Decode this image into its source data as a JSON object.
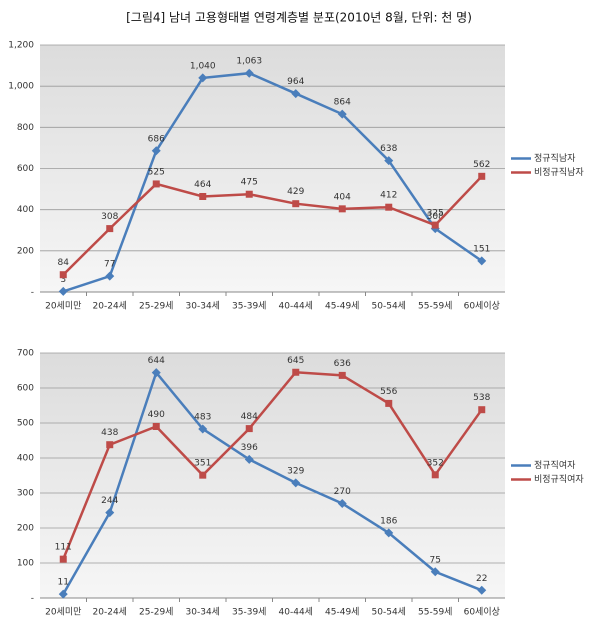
{
  "title": "[그림4] 남녀 고용형태별 연령계층별 분포(2010년 8월, 단위: 천 명)",
  "chart_data": [
    {
      "type": "line",
      "categories": [
        "20세미만",
        "20-24세",
        "25-29세",
        "30-34세",
        "35-39세",
        "40-44세",
        "45-49세",
        "50-54세",
        "55-59세",
        "60세이상"
      ],
      "ylim": [
        0,
        1200
      ],
      "yticks": [
        {
          "value": 0,
          "label": "-"
        },
        200,
        400,
        600,
        800,
        {
          "value": 1000,
          "label": "1,000"
        },
        {
          "value": 1200,
          "label": "1,200"
        }
      ],
      "grid": true,
      "legend": "right",
      "series": [
        {
          "name": "정규직남자",
          "color": "#4a7ebb",
          "marker": "diamond",
          "values": [
            3,
            77,
            686,
            1040,
            1063,
            964,
            864,
            638,
            308,
            151
          ],
          "value_labels": [
            "3",
            "77",
            "686",
            "1,040",
            "1,063",
            "964",
            "864",
            "638",
            "308",
            "151"
          ]
        },
        {
          "name": "비정규직남자",
          "color": "#be4b48",
          "marker": "square",
          "values": [
            84,
            308,
            525,
            464,
            475,
            429,
            404,
            412,
            325,
            562
          ]
        }
      ]
    },
    {
      "type": "line",
      "categories": [
        "20세미만",
        "20-24세",
        "25-29세",
        "30-34세",
        "35-39세",
        "40-44세",
        "45-49세",
        "50-54세",
        "55-59세",
        "60세이상"
      ],
      "ylim": [
        0,
        700
      ],
      "yticks": [
        {
          "value": 0,
          "label": "-"
        },
        100,
        200,
        300,
        400,
        500,
        600,
        700
      ],
      "grid": true,
      "legend": "right",
      "series": [
        {
          "name": "정규직여자",
          "color": "#4a7ebb",
          "marker": "diamond",
          "values": [
            11,
            244,
            644,
            483,
            396,
            329,
            270,
            186,
            75,
            22
          ]
        },
        {
          "name": "비정규직여자",
          "color": "#be4b48",
          "marker": "square",
          "values": [
            111,
            438,
            490,
            351,
            484,
            645,
            636,
            556,
            352,
            538
          ]
        }
      ]
    }
  ]
}
